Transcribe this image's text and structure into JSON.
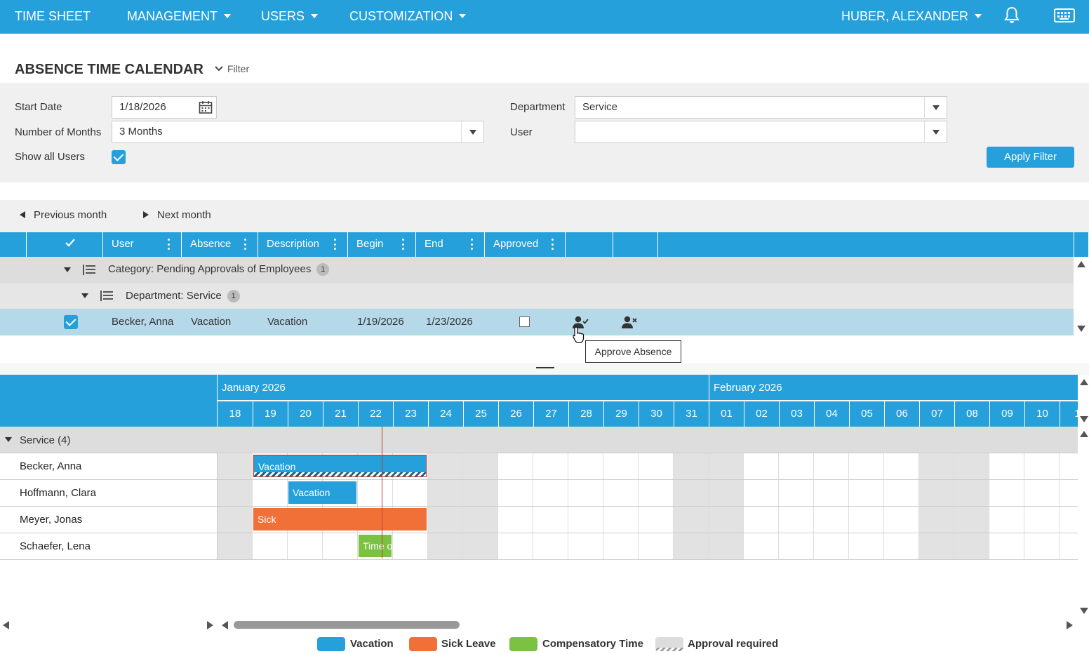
{
  "topbar": {
    "app_title": "TIME SHEET",
    "menu": [
      {
        "label": "MANAGEMENT"
      },
      {
        "label": "USERS"
      },
      {
        "label": "CUSTOMIZATION"
      }
    ],
    "user": "HUBER, ALEXANDER"
  },
  "page": {
    "title": "ABSENCE TIME CALENDAR",
    "filter_toggle": "Filter"
  },
  "filter": {
    "start_date_label": "Start Date",
    "start_date": "1/18/2026",
    "months_label": "Number of Months",
    "months": "3 Months",
    "show_all_label": "Show all Users",
    "show_all_checked": true,
    "department_label": "Department",
    "department": "Service",
    "user_label": "User",
    "user": "",
    "apply": "Apply Filter"
  },
  "nav": {
    "prev": "Previous month",
    "next": "Next month"
  },
  "grid": {
    "columns": [
      "User",
      "Absence",
      "Description",
      "Begin",
      "End",
      "Approved"
    ],
    "category_group": "Category: Pending Approvals of Employees",
    "category_count": "1",
    "department_group": "Department: Service",
    "department_count": "1",
    "rows": [
      {
        "user": "Becker, Anna",
        "absence": "Vacation",
        "description": "Vacation",
        "begin": "1/19/2026",
        "end": "1/23/2026",
        "approved": false,
        "selected": true
      }
    ],
    "tooltip": "Approve Absence"
  },
  "calendar": {
    "months": [
      "January 2026",
      "February 2026"
    ],
    "days": [
      "18",
      "19",
      "20",
      "21",
      "22",
      "23",
      "24",
      "25",
      "26",
      "27",
      "28",
      "29",
      "30",
      "31",
      "01",
      "02",
      "03",
      "04",
      "05",
      "06",
      "07",
      "08",
      "09",
      "10",
      "1"
    ],
    "weekend_indices": [
      0,
      6,
      7,
      13,
      14,
      20,
      21
    ],
    "today_index": 4,
    "group": "Service (4)",
    "users": [
      {
        "name": "Becker, Anna",
        "bars": [
          {
            "label": "Vacation",
            "type": "vacation",
            "start": 1,
            "end": 5,
            "approval": true
          }
        ]
      },
      {
        "name": "Hoffmann, Clara",
        "bars": [
          {
            "label": "Vacation",
            "type": "vacation",
            "start": 2,
            "end": 3,
            "approval": false
          }
        ]
      },
      {
        "name": "Meyer, Jonas",
        "bars": [
          {
            "label": "Sick",
            "type": "sick",
            "start": 1,
            "end": 5,
            "approval": false
          }
        ]
      },
      {
        "name": "Schaefer, Lena",
        "bars": [
          {
            "label": "Time o",
            "type": "comp",
            "start": 4,
            "end": 4,
            "approval": false
          }
        ]
      }
    ]
  },
  "legend": [
    {
      "label": "Vacation",
      "color": "#26a0da"
    },
    {
      "label": "Sick Leave",
      "color": "#f07038"
    },
    {
      "label": "Compensatory Time",
      "color": "#7cc242"
    },
    {
      "label": "Approval required",
      "color": "#dddddd"
    }
  ],
  "colors": {
    "accent": "#26a0da",
    "vacation": "#26a0da",
    "sick": "#f07038",
    "comp": "#7cc242"
  }
}
